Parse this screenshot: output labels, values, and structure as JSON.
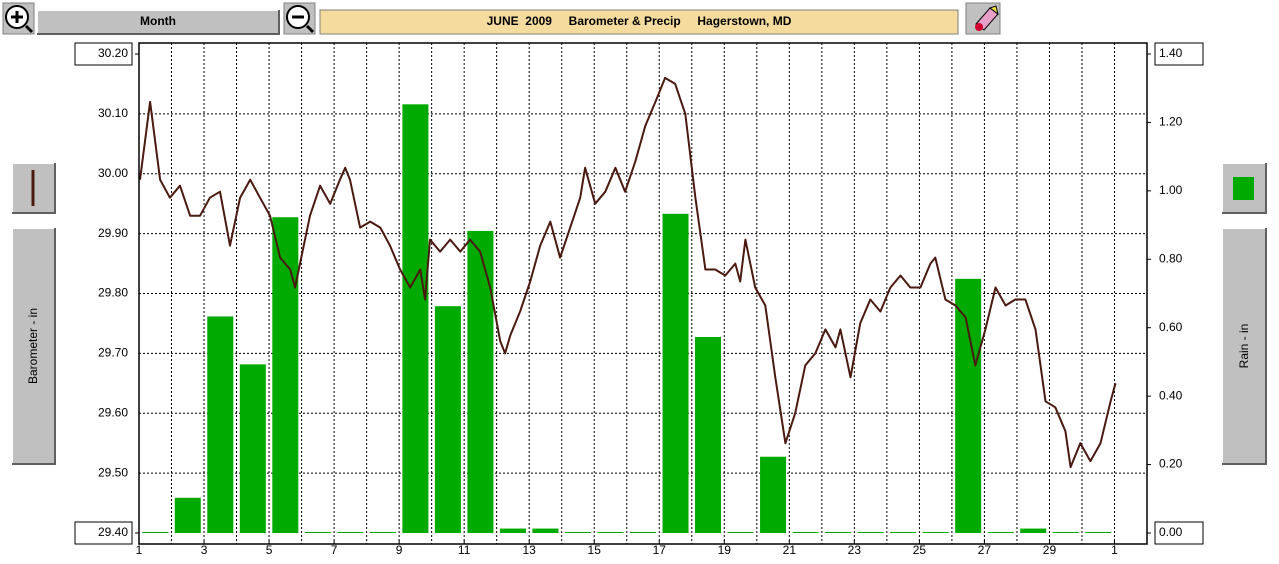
{
  "toolbar": {
    "period": "Month"
  },
  "chart_data": {
    "type": "combo",
    "title": "JUNE  2009     Barometer & Precip     Hagerstown, MD",
    "ylabel": "Barometer - in",
    "y2label": "Rain - in",
    "grid": true,
    "xlim": [
      1,
      32
    ],
    "xticks": [
      1,
      3,
      5,
      7,
      9,
      11,
      13,
      15,
      17,
      19,
      21,
      23,
      25,
      27,
      29,
      {
        "value": 31,
        "label": "1"
      }
    ],
    "xminor_ticks": [
      2,
      4,
      6,
      8,
      10,
      12,
      14,
      16,
      18,
      20,
      22,
      24,
      26,
      28,
      30
    ],
    "ylim": [
      29.4,
      30.2
    ],
    "yticks": [
      {
        "value": 29.4,
        "label": "29.40"
      },
      {
        "value": 29.5,
        "label": "29.50"
      },
      {
        "value": 29.6,
        "label": "29.60"
      },
      {
        "value": 29.7,
        "label": "29.70"
      },
      {
        "value": 29.8,
        "label": "29.80"
      },
      {
        "value": 29.9,
        "label": "29.90"
      },
      {
        "value": 30.0,
        "label": "30.00"
      },
      {
        "value": 30.1,
        "label": "30.10"
      },
      {
        "value": 30.2,
        "label": "30.20"
      }
    ],
    "y2lim": [
      0,
      1.4
    ],
    "y2ticks": [
      {
        "value": 0,
        "label": "0.00"
      },
      {
        "value": 0.2,
        "label": "0.20"
      },
      {
        "value": 0.4,
        "label": "0.40"
      },
      {
        "value": 0.6,
        "label": "0.60"
      },
      {
        "value": 0.8,
        "label": "0.80"
      },
      {
        "value": 1.0,
        "label": "1.00"
      },
      {
        "value": 1.2,
        "label": "1.20"
      },
      {
        "value": 1.4,
        "label": "1.40"
      }
    ],
    "series": [
      {
        "type": "bar",
        "axis": "y2",
        "color": "#00aa00",
        "x": [
          1,
          2,
          3,
          4,
          5,
          6,
          7,
          8,
          9,
          10,
          11,
          12,
          13,
          14,
          15,
          16,
          17,
          18,
          19,
          20,
          21,
          22,
          23,
          24,
          25,
          26,
          27,
          28,
          29,
          30
        ],
        "values": [
          0,
          0.1,
          0.63,
          0.49,
          0.92,
          0,
          0,
          0,
          1.25,
          0.66,
          0.88,
          0.01,
          0.01,
          0,
          0,
          0,
          0.93,
          0.57,
          0,
          0.22,
          0,
          0,
          0,
          0,
          0,
          0.74,
          0,
          0.01,
          0,
          0
        ]
      },
      {
        "type": "line",
        "color": "#4a1a10",
        "x": [
          1.03,
          1.34,
          1.65,
          1.95,
          2.26,
          2.57,
          2.88,
          3.18,
          3.49,
          3.8,
          4.11,
          4.42,
          4.72,
          5.03,
          5.34,
          5.65,
          5.8,
          5.95,
          6.26,
          6.57,
          6.88,
          7.18,
          7.34,
          7.49,
          7.8,
          8.11,
          8.42,
          8.72,
          9.03,
          9.34,
          9.65,
          9.8,
          9.95,
          10.26,
          10.57,
          10.88,
          11.18,
          11.49,
          11.8,
          12.11,
          12.26,
          12.42,
          12.72,
          13.03,
          13.34,
          13.65,
          13.95,
          14.26,
          14.57,
          14.72,
          15.03,
          15.34,
          15.65,
          15.95,
          16.26,
          16.57,
          16.88,
          17.18,
          17.49,
          17.8,
          18.11,
          18.42,
          18.72,
          19.03,
          19.34,
          19.49,
          19.65,
          19.95,
          20.26,
          20.57,
          20.88,
          21.18,
          21.49,
          21.8,
          22.11,
          22.42,
          22.57,
          22.88,
          23.18,
          23.49,
          23.8,
          24.11,
          24.42,
          24.72,
          25.03,
          25.34,
          25.49,
          25.8,
          26.11,
          26.42,
          26.72,
          27.03,
          27.34,
          27.65,
          27.95,
          28.26,
          28.57,
          28.88,
          29.18,
          29.49,
          29.65,
          29.95,
          30.26,
          30.57,
          30.88,
          31.03
        ],
        "values": [
          29.99,
          30.12,
          29.99,
          29.96,
          29.98,
          29.93,
          29.93,
          29.96,
          29.97,
          29.88,
          29.96,
          29.99,
          29.96,
          29.93,
          29.86,
          29.84,
          29.81,
          29.85,
          29.93,
          29.98,
          29.95,
          29.99,
          30.01,
          29.99,
          29.91,
          29.92,
          29.91,
          29.88,
          29.84,
          29.81,
          29.84,
          29.79,
          29.89,
          29.87,
          29.89,
          29.87,
          29.89,
          29.87,
          29.81,
          29.72,
          29.7,
          29.73,
          29.77,
          29.82,
          29.88,
          29.92,
          29.86,
          29.91,
          29.96,
          30.01,
          29.95,
          29.97,
          30.01,
          29.97,
          30.02,
          30.08,
          30.12,
          30.16,
          30.15,
          30.1,
          29.96,
          29.84,
          29.84,
          29.83,
          29.85,
          29.82,
          29.89,
          29.81,
          29.78,
          29.66,
          29.55,
          29.6,
          29.68,
          29.7,
          29.74,
          29.71,
          29.74,
          29.66,
          29.75,
          29.79,
          29.77,
          29.81,
          29.83,
          29.81,
          29.81,
          29.85,
          29.86,
          29.79,
          29.78,
          29.76,
          29.68,
          29.74,
          29.81,
          29.78,
          29.79,
          29.79,
          29.74,
          29.62,
          29.61,
          29.57,
          29.51,
          29.55,
          29.52,
          29.55,
          29.62,
          29.65
        ]
      }
    ]
  }
}
